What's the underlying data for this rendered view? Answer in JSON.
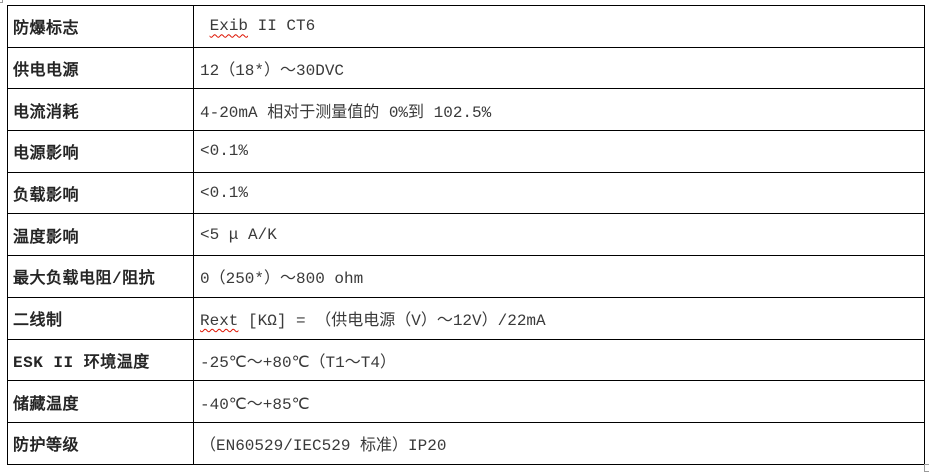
{
  "table": {
    "rows": [
      {
        "label": "防爆标志",
        "value_start": " ",
        "misspelled": "Exib",
        "value_end": " II CT6"
      },
      {
        "label": "供电电源",
        "value_start": "",
        "misspelled": "",
        "value_end": "12（18*）～30DVC"
      },
      {
        "label": "电流消耗",
        "value_start": "",
        "misspelled": "",
        "value_end": "4-20mA 相对于测量值的 0%到 102.5%"
      },
      {
        "label": "电源影响",
        "value_start": "",
        "misspelled": "",
        "value_end": "<0.1%"
      },
      {
        "label": "负载影响",
        "value_start": "",
        "misspelled": "",
        "value_end": "<0.1%"
      },
      {
        "label": "温度影响",
        "value_start": "",
        "misspelled": "",
        "value_end": "<5 μ A/K"
      },
      {
        "label": "最大负载电阻/阻抗",
        "value_start": "",
        "misspelled": "",
        "value_end": "0（250*）～800 ohm"
      },
      {
        "label": "二线制",
        "value_start": "",
        "misspelled": "Rext",
        "value_end": " [KΩ] = （供电电源（V）～12V）/22mA"
      },
      {
        "label": "ESK II 环境温度",
        "value_start": "",
        "misspelled": "",
        "value_end": "-25℃～+80℃（T1～T4）"
      },
      {
        "label": "储藏温度",
        "value_start": "",
        "misspelled": "",
        "value_end": "-40℃～+85℃"
      },
      {
        "label": "防护等级",
        "value_start": "",
        "misspelled": "",
        "value_end": "（EN60529/IEC529 标准）IP20"
      }
    ],
    "border_color": "#000000",
    "label_text_color": "#252525",
    "value_text_color": "#3a3a3a",
    "spellcheck_underline_color": "#dd1100",
    "handle_color": "#9a9a9a"
  }
}
